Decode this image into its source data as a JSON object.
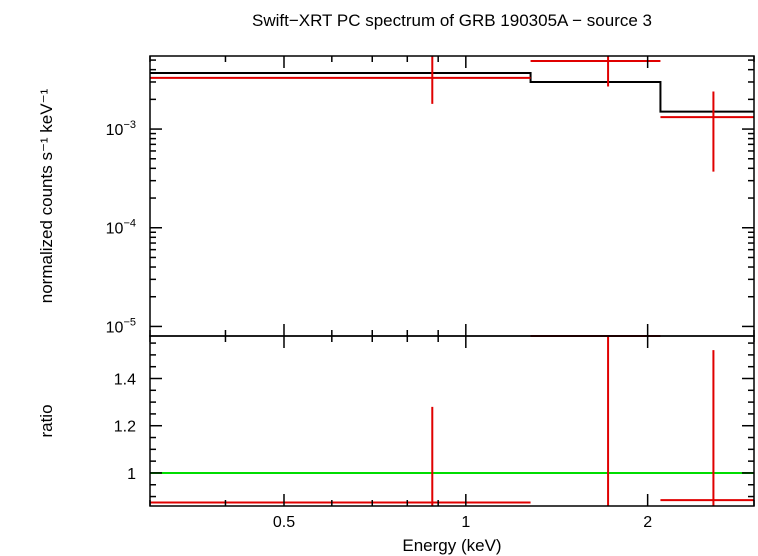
{
  "chart_data": {
    "type": "scatter",
    "title": "Swift−XRT PC spectrum of GRB 190305A − source 3",
    "xlabel": "Energy (keV)",
    "xscale": "log",
    "xlim": [
      0.3,
      3.0
    ],
    "x_ticks": [
      {
        "value": 0.5,
        "label": "0.5"
      },
      {
        "value": 1,
        "label": "1"
      },
      {
        "value": 2,
        "label": "2"
      }
    ],
    "colors": {
      "data": "#e00000",
      "model": "#000000",
      "unity": "#00dd00",
      "frame": "#000000"
    },
    "panels": {
      "spectrum": {
        "ylabel": "normalized counts s⁻¹ keV⁻¹",
        "yscale": "log",
        "ylim": [
          8e-06,
          0.0055
        ],
        "y_ticks": [
          {
            "value": 0.001,
            "base": "10",
            "exp": "−3"
          },
          {
            "value": 0.0001,
            "base": "10",
            "exp": "−4"
          },
          {
            "value": 1e-05,
            "base": "10",
            "exp": "−5"
          }
        ],
        "data": [
          {
            "x": 0.88,
            "xlo": 0.3,
            "xhi": 1.28,
            "y": 0.0033,
            "ylo": 0.0018,
            "yhi": 0.0055
          },
          {
            "x": 1.72,
            "xlo": 1.28,
            "xhi": 2.1,
            "y": 0.0049,
            "ylo": 0.0027,
            "yhi": 0.0055
          },
          {
            "x": 2.57,
            "xlo": 2.1,
            "xhi": 3.0,
            "y": 0.00132,
            "ylo": 0.00037,
            "yhi": 0.0024
          }
        ],
        "model": [
          {
            "xlo": 0.3,
            "xhi": 1.28,
            "y": 0.0037
          },
          {
            "xlo": 1.28,
            "xhi": 2.1,
            "y": 0.003
          },
          {
            "xlo": 2.1,
            "xhi": 3.0,
            "y": 0.0015
          }
        ]
      },
      "ratio": {
        "ylabel": "ratio",
        "yscale": "linear",
        "ylim": [
          0.86,
          1.58
        ],
        "y_ticks": [
          {
            "value": 1,
            "label": "1"
          },
          {
            "value": 1.2,
            "label": "1.2"
          },
          {
            "value": 1.4,
            "label": "1.4"
          }
        ],
        "unity": 1,
        "data": [
          {
            "x": 0.88,
            "xlo": 0.3,
            "xhi": 1.28,
            "y": 0.875,
            "ylo": 0.86,
            "yhi": 1.28
          },
          {
            "x": 1.72,
            "xlo": 1.28,
            "xhi": 2.1,
            "y": 1.58,
            "ylo": 0.86,
            "yhi": 1.58
          },
          {
            "x": 2.57,
            "xlo": 2.1,
            "xhi": 3.0,
            "y": 0.885,
            "ylo": 0.86,
            "yhi": 1.52
          }
        ]
      }
    }
  }
}
